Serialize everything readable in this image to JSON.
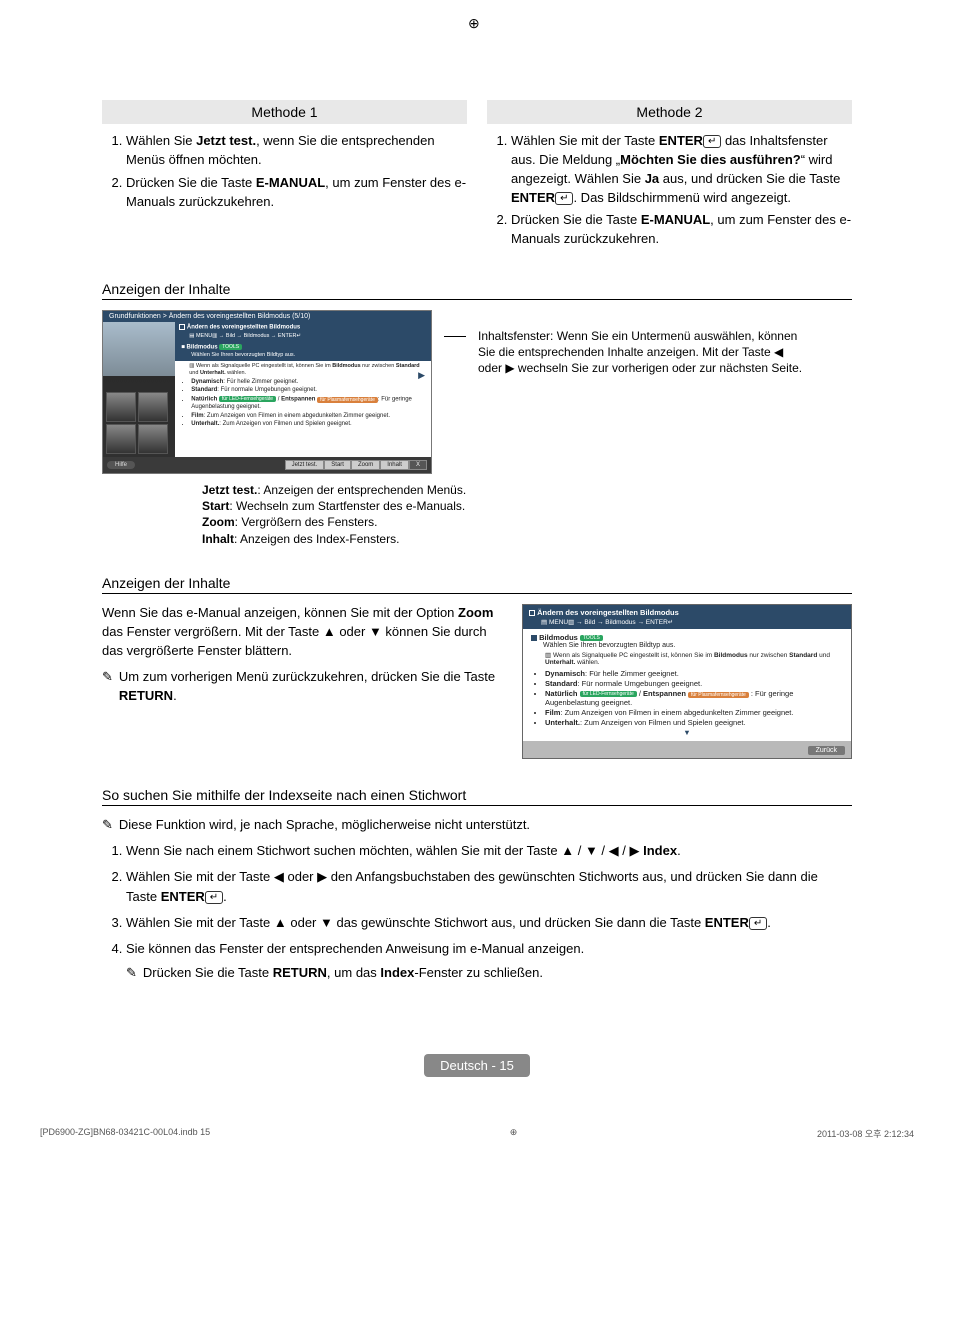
{
  "crop_glyph": "⊕",
  "methods": {
    "left": {
      "title": "Methode 1",
      "items": [
        "Wählen Sie <b>Jetzt test.</b>, wenn Sie die entsprechenden Menüs öffnen möchten.",
        "Drücken Sie die Taste <b>E-MANUAL</b>, um zum Fenster des e-Manuals zurückzukehren."
      ]
    },
    "right": {
      "title": "Methode 2",
      "items": [
        "Wählen Sie mit der Taste <b>ENTER</b><span class=\"enter-btn\"></span> das Inhaltsfenster aus. Die Meldung „<b>Möchten Sie dies ausführen?</b>“ wird angezeigt. Wählen Sie <b>Ja</b> aus, und drücken Sie die Taste <b>ENTER</b><span class=\"enter-btn\"></span>. Das Bildschirmmenü wird angezeigt.",
        "Drücken Sie die Taste <b>E-MANUAL</b>, um zum Fenster des e-Manuals zurückzukehren."
      ]
    }
  },
  "section1_title": "Anzeigen der Inhalte",
  "side_caption": "Inhaltsfenster: Wenn Sie ein Untermenü auswählen, können Sie die entsprechenden Inhalte anzeigen. Mit der Taste ◀ oder ▶ wechseln Sie zur vorherigen oder zur nächsten Seite.",
  "ss1": {
    "top_bar": "Grundfunktionen > Ändern des voreingestellten Bildmodus (5/10)",
    "panel_title": "Ändern des voreingestellten Bildmodus",
    "panel_path": "MENU▥ → Bild → Bildmodus → ENTER↵",
    "bm_label": "Bildmodus",
    "badge_tools": "TOOLS",
    "bm_sub": "Wählen Sie Ihren bevorzugten Bildtyp aus.",
    "pc_note": "Wenn als Signalquelle PC eingestellt ist, können Sie im <b>Bildmodus</b> nur zwischen <b>Standard</b> und <b>Unterhalt.</b> wählen.",
    "bullets": [
      "<b>Dynamisch</b>: Für helle Zimmer geeignet.",
      "<b>Standard</b>: Für normale Umgebungen geeignet.",
      "<b>Natürlich</b> <span class=\"ss1-badge\">für LED-Fernsehgeräte</span> / <b>Entspannen</b> <span class=\"ss1-badge-orange\">für Plasmafernsehgeräte</span>: Für geringe Augenbelastung geeignet.",
      "<b>Film</b>: Zum Anzeigen von Filmen in einem abgedunkelten Zimmer geeignet.",
      "<b>Unterhalt.</b>: Zum Anzeigen von Filmen und Spielen geeignet."
    ],
    "help": "Hilfe",
    "tabs": [
      "Jetzt test.",
      "Start",
      "Zoom",
      "Inhalt",
      "X"
    ]
  },
  "caption1": "<b>Jetzt test.</b>: Anzeigen der entsprechenden Menüs.<br><b>Start</b>: Wechseln zum Startfenster des e-Manuals.<br><b>Zoom</b>: Vergrößern des Fensters.<br><b>Inhalt</b>: Anzeigen des Index-Fensters.",
  "section2_title": "Anzeigen der Inhalte",
  "zoom_text": "Wenn Sie das e-Manual anzeigen, können Sie mit der Option <b>Zoom</b> das Fenster vergrößern. Mit der Taste ▲ oder ▼ können Sie durch das vergrößerte Fenster blättern.",
  "zoom_note": "Um zum vorherigen Menü zurückzukehren, drücken Sie die Taste <b>RETURN</b>.",
  "ss2": {
    "title": "Ändern des voreingestellten Bildmodus",
    "path": "MENU▥ → Bild → Bildmodus → ENTER↵",
    "bm_label": "Bildmodus",
    "bm_sub": "Wählen Sie Ihren bevorzugten Bildtyp aus.",
    "pc_note": "Wenn als Signalquelle PC eingestellt ist, können Sie im <b>Bildmodus</b> nur zwischen <b>Standard</b> und <b>Unterhalt.</b> wählen.",
    "bullets": [
      "<b>Dynamisch</b>: Für helle Zimmer geeignet.",
      "<b>Standard</b>: Für normale Umgebungen geeignet.",
      "<b>Natürlich</b> <span class=\"ss1-badge\">für LED-Fernsehgeräte</span> / <b>Entspannen</b> <span class=\"ss1-badge-orange\">für Plasmafernsehgeräte</span> : Für geringe Augenbelastung geeignet.",
      "<b>Film</b>: Zum Anzeigen von Filmen in einem abgedunkelten Zimmer geeignet.",
      "<b>Unterhalt.</b>: Zum Anzeigen von Filmen und Spielen geeignet."
    ],
    "back": "Zurück"
  },
  "section3_title": "So suchen Sie mithilfe der Indexseite nach einen Stichwort",
  "section3_note": "Diese Funktion wird, je nach Sprache, möglicherweise nicht unterstützt.",
  "section3_items": [
    "Wenn Sie nach einem Stichwort suchen möchten, wählen Sie mit der Taste ▲ / ▼ / ◀ / ▶ <b>Index</b>.",
    "Wählen Sie mit der Taste ◀ oder ▶ den Anfangsbuchstaben des gewünschten Stichworts aus, und drücken Sie dann die Taste <b>ENTER</b><span class=\"enter-btn\"></span>.",
    "Wählen Sie mit der Taste ▲ oder ▼ das gewünschte Stichwort aus, und drücken Sie dann die Taste <b>ENTER</b><span class=\"enter-btn\"></span>.",
    "Sie können das Fenster der entsprechenden Anweisung im e-Manual anzeigen."
  ],
  "section3_subnote": "Drücken Sie die Taste <b>RETURN</b>, um das <b>Index</b>-Fenster zu schließen.",
  "footer_label": "Deutsch - 15",
  "imprint_left": "[PD6900-ZG]BN68-03421C-00L04.indb   15",
  "imprint_right": "2011-03-08   오후 2:12:34",
  "note_glyph": "✎",
  "colors": {
    "header_bg": "#e8e8e8",
    "panel_blue": "#2c4a68",
    "badge_green": "#2aa55f",
    "badge_orange": "#d9803c",
    "footer_badge": "#888888"
  }
}
